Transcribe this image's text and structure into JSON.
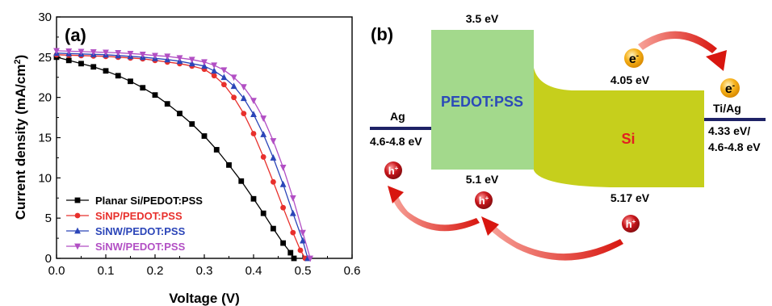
{
  "chart_data": [
    {
      "type": "line",
      "panel_label": "(a)",
      "xlabel": "Voltage (V)",
      "ylabel_main": "Current density (mA/cm",
      "ylabel_sup": "2",
      "ylabel_close": ")",
      "xlim": [
        0.0,
        0.6
      ],
      "ylim": [
        0,
        30
      ],
      "xticks": [
        "0.0",
        "0.1",
        "0.2",
        "0.3",
        "0.4",
        "0.5",
        "0.6"
      ],
      "yticks": [
        "0",
        "5",
        "10",
        "15",
        "20",
        "25",
        "30"
      ],
      "grid": false,
      "legend_position": "bottom-left",
      "series": [
        {
          "name": "Planar Si/PEDOT:PSS",
          "color": "#000000",
          "marker": "square",
          "x": [
            0.0,
            0.025,
            0.05,
            0.075,
            0.1,
            0.125,
            0.15,
            0.175,
            0.2,
            0.225,
            0.25,
            0.275,
            0.3,
            0.325,
            0.35,
            0.375,
            0.4,
            0.42,
            0.44,
            0.46,
            0.475,
            0.482
          ],
          "y": [
            25.0,
            24.6,
            24.2,
            23.8,
            23.3,
            22.7,
            22.0,
            21.2,
            20.3,
            19.2,
            18.0,
            16.7,
            15.2,
            13.5,
            11.6,
            9.6,
            7.4,
            5.6,
            3.7,
            1.9,
            0.7,
            0.0
          ]
        },
        {
          "name": "SiNP/PEDOT:PSS",
          "color": "#e8302c",
          "marker": "circle",
          "x": [
            0.0,
            0.025,
            0.05,
            0.075,
            0.1,
            0.125,
            0.15,
            0.175,
            0.2,
            0.225,
            0.25,
            0.275,
            0.3,
            0.32,
            0.34,
            0.36,
            0.38,
            0.4,
            0.42,
            0.44,
            0.46,
            0.48,
            0.495,
            0.505
          ],
          "y": [
            25.3,
            25.25,
            25.2,
            25.15,
            25.1,
            25.0,
            24.9,
            24.8,
            24.6,
            24.4,
            24.2,
            23.9,
            23.5,
            22.7,
            21.6,
            20.0,
            18.0,
            15.5,
            12.6,
            9.5,
            6.3,
            3.2,
            1.0,
            0.0
          ]
        },
        {
          "name": "SiNW/PEDOT:PSS",
          "color": "#2b45b8",
          "marker": "triangle-up",
          "x": [
            0.0,
            0.025,
            0.05,
            0.075,
            0.1,
            0.125,
            0.15,
            0.175,
            0.2,
            0.225,
            0.25,
            0.275,
            0.3,
            0.32,
            0.34,
            0.36,
            0.38,
            0.4,
            0.42,
            0.44,
            0.46,
            0.48,
            0.5,
            0.51
          ],
          "y": [
            25.5,
            25.45,
            25.4,
            25.35,
            25.3,
            25.2,
            25.1,
            25.0,
            24.85,
            24.7,
            24.5,
            24.2,
            23.9,
            23.3,
            22.5,
            21.4,
            19.9,
            17.9,
            15.4,
            12.5,
            9.2,
            5.6,
            2.2,
            0.0
          ]
        },
        {
          "name": "SiNW/PEDOT:PSS",
          "color": "#b24fc4",
          "marker": "triangle-down",
          "x": [
            0.0,
            0.025,
            0.05,
            0.075,
            0.1,
            0.125,
            0.15,
            0.175,
            0.2,
            0.225,
            0.25,
            0.275,
            0.3,
            0.32,
            0.34,
            0.36,
            0.38,
            0.4,
            0.42,
            0.44,
            0.46,
            0.48,
            0.5,
            0.515
          ],
          "y": [
            25.8,
            25.75,
            25.7,
            25.65,
            25.6,
            25.55,
            25.45,
            25.35,
            25.2,
            25.1,
            24.9,
            24.7,
            24.4,
            24.0,
            23.4,
            22.5,
            21.3,
            19.6,
            17.4,
            14.6,
            11.3,
            7.5,
            3.2,
            0.0
          ]
        }
      ]
    },
    {
      "type": "diagram",
      "panel_label": "(b)",
      "labels": {
        "ag": "Ag",
        "ag_wf": "4.6-4.8 eV",
        "pedot": "PEDOT:PSS",
        "pedot_top": "3.5 eV",
        "pedot_bottom": "5.1 eV",
        "si": "Si",
        "si_top": "4.05 eV",
        "si_bottom": "5.17 eV",
        "tiag": "Ti/Ag",
        "tiag_wf1": "4.33 eV/",
        "tiag_wf2": "4.6-4.8 eV",
        "electron": "e",
        "electron_sup": "-",
        "hole": "h",
        "hole_sup": "+"
      },
      "colors": {
        "pedot_fill": "#a3d98c",
        "si_fill": "#c6cf1c",
        "electrode": "#1e2266",
        "pedot_text": "#2c4ab8",
        "si_text": "#e22020",
        "arrow": "#e02418",
        "electron": "#f4ae16",
        "hole": "#c01818"
      }
    }
  ]
}
